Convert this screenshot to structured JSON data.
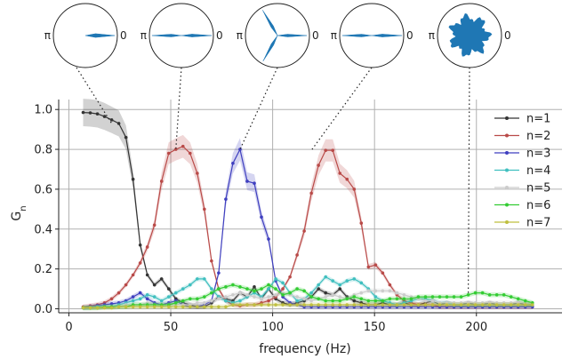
{
  "chart_data": {
    "type": "line",
    "xlabel": "frequency (Hz)",
    "ylabel_main": "G",
    "ylabel_sub": "n",
    "xlim": [
      -5,
      242
    ],
    "ylim": [
      -0.02,
      1.05
    ],
    "xticks": [
      0,
      50,
      100,
      150,
      200
    ],
    "yticks": [
      0.0,
      0.2,
      0.4,
      0.6,
      0.8,
      1.0
    ],
    "xtick_labels": [
      "0",
      "50",
      "100",
      "150",
      "200"
    ],
    "ytick_labels": [
      "0.0",
      "0.2",
      "0.4",
      "0.6",
      "0.8",
      "1.0"
    ],
    "grid": true,
    "legend_position": "top-right",
    "x": [
      7,
      10.5,
      14,
      17.5,
      21,
      24.5,
      28,
      31.5,
      35,
      38.5,
      42,
      45.5,
      49,
      52.5,
      56,
      59.5,
      63,
      66.5,
      70,
      73.5,
      77,
      80.5,
      84,
      87.5,
      91,
      94.5,
      98,
      101.5,
      105,
      108.5,
      112,
      115.5,
      119,
      122.5,
      126,
      129.5,
      133,
      136.5,
      140,
      143.5,
      147,
      150.5,
      154,
      157.5,
      161,
      164.5,
      168,
      171.5,
      175,
      178.5,
      182,
      185.5,
      189,
      192.5,
      196,
      199.5,
      203,
      206.5,
      210,
      213.5,
      217,
      220.5,
      224,
      227.5
    ],
    "series": [
      {
        "name": "n=1",
        "color": "#333333",
        "values": [
          0.985,
          0.983,
          0.978,
          0.965,
          0.948,
          0.93,
          0.86,
          0.65,
          0.32,
          0.17,
          0.12,
          0.15,
          0.1,
          0.05,
          0.03,
          0.02,
          0.01,
          0.01,
          0.03,
          0.06,
          0.05,
          0.04,
          0.08,
          0.06,
          0.11,
          0.05,
          0.1,
          0.05,
          0.03,
          0.02,
          0.03,
          0.04,
          0.06,
          0.1,
          0.08,
          0.07,
          0.1,
          0.06,
          0.04,
          0.03,
          0.02,
          0.02,
          0.03,
          0.02,
          0.02,
          0.03,
          0.02,
          0.02,
          0.03,
          0.04,
          0.02,
          0.03,
          0.02,
          0.02,
          0.03,
          0.02,
          0.02,
          0.03,
          0.02,
          0.02,
          0.02,
          0.03,
          0.02,
          0.02
        ]
      },
      {
        "name": "n=2",
        "color": "#b94a48",
        "values": [
          0.01,
          0.015,
          0.02,
          0.03,
          0.05,
          0.08,
          0.12,
          0.17,
          0.23,
          0.31,
          0.42,
          0.64,
          0.78,
          0.8,
          0.815,
          0.78,
          0.68,
          0.5,
          0.24,
          0.1,
          0.04,
          0.02,
          0.015,
          0.02,
          0.02,
          0.03,
          0.04,
          0.06,
          0.1,
          0.16,
          0.27,
          0.39,
          0.58,
          0.72,
          0.795,
          0.795,
          0.68,
          0.65,
          0.6,
          0.43,
          0.21,
          0.22,
          0.18,
          0.12,
          0.07,
          0.04,
          0.03,
          0.02,
          0.02,
          0.02,
          0.01,
          0.01,
          0.01,
          0.01,
          0.01,
          0.01,
          0.01,
          0.01,
          0.01,
          0.01,
          0.01,
          0.01,
          0.01,
          0.01
        ]
      },
      {
        "name": "n=3",
        "color": "#3f3fbf",
        "values": [
          0.005,
          0.01,
          0.015,
          0.02,
          0.025,
          0.03,
          0.04,
          0.06,
          0.08,
          0.05,
          0.03,
          0.02,
          0.03,
          0.04,
          0.02,
          0.01,
          0.01,
          0.02,
          0.04,
          0.18,
          0.55,
          0.73,
          0.8,
          0.64,
          0.63,
          0.46,
          0.35,
          0.14,
          0.06,
          0.03,
          0.02,
          0.01,
          0.01,
          0.01,
          0.01,
          0.01,
          0.01,
          0.01,
          0.01,
          0.01,
          0.01,
          0.01,
          0.01,
          0.01,
          0.01,
          0.01,
          0.01,
          0.01,
          0.01,
          0.01,
          0.01,
          0.01,
          0.01,
          0.01,
          0.01,
          0.01,
          0.01,
          0.01,
          0.01,
          0.01,
          0.01,
          0.01,
          0.01,
          0.01
        ]
      },
      {
        "name": "n=4",
        "color": "#3fbfbf",
        "values": [
          0.005,
          0.005,
          0.01,
          0.01,
          0.01,
          0.02,
          0.03,
          0.04,
          0.05,
          0.07,
          0.06,
          0.04,
          0.06,
          0.08,
          0.1,
          0.12,
          0.15,
          0.15,
          0.1,
          0.06,
          0.04,
          0.03,
          0.04,
          0.06,
          0.08,
          0.06,
          0.1,
          0.15,
          0.13,
          0.08,
          0.04,
          0.05,
          0.08,
          0.12,
          0.16,
          0.14,
          0.12,
          0.14,
          0.15,
          0.13,
          0.1,
          0.06,
          0.04,
          0.03,
          0.02,
          0.03,
          0.04,
          0.05,
          0.05,
          0.04,
          0.03,
          0.03,
          0.02,
          0.02,
          0.02,
          0.02,
          0.02,
          0.02,
          0.02,
          0.02,
          0.02,
          0.02,
          0.02,
          0.02
        ]
      },
      {
        "name": "n=5",
        "color": "#cccccc",
        "values": [
          0.005,
          0.005,
          0.005,
          0.01,
          0.01,
          0.01,
          0.02,
          0.02,
          0.02,
          0.03,
          0.02,
          0.02,
          0.02,
          0.02,
          0.02,
          0.02,
          0.03,
          0.03,
          0.04,
          0.05,
          0.06,
          0.07,
          0.08,
          0.07,
          0.06,
          0.05,
          0.06,
          0.07,
          0.08,
          0.07,
          0.06,
          0.05,
          0.04,
          0.05,
          0.06,
          0.07,
          0.06,
          0.05,
          0.07,
          0.08,
          0.09,
          0.09,
          0.09,
          0.09,
          0.08,
          0.07,
          0.06,
          0.05,
          0.04,
          0.04,
          0.03,
          0.03,
          0.03,
          0.03,
          0.03,
          0.03,
          0.03,
          0.03,
          0.03,
          0.03,
          0.03,
          0.03,
          0.03,
          0.03
        ]
      },
      {
        "name": "n=6",
        "color": "#33cc33",
        "values": [
          0.005,
          0.005,
          0.005,
          0.01,
          0.01,
          0.01,
          0.01,
          0.02,
          0.02,
          0.02,
          0.02,
          0.02,
          0.02,
          0.03,
          0.04,
          0.05,
          0.05,
          0.06,
          0.08,
          0.1,
          0.11,
          0.12,
          0.11,
          0.1,
          0.09,
          0.1,
          0.12,
          0.1,
          0.07,
          0.08,
          0.1,
          0.09,
          0.06,
          0.05,
          0.04,
          0.04,
          0.04,
          0.05,
          0.06,
          0.05,
          0.04,
          0.04,
          0.04,
          0.05,
          0.05,
          0.05,
          0.05,
          0.06,
          0.06,
          0.06,
          0.06,
          0.06,
          0.06,
          0.06,
          0.07,
          0.08,
          0.08,
          0.07,
          0.07,
          0.07,
          0.06,
          0.05,
          0.04,
          0.03
        ]
      },
      {
        "name": "n=7",
        "color": "#bfbf3f",
        "values": [
          0.005,
          0.005,
          0.005,
          0.005,
          0.005,
          0.01,
          0.01,
          0.01,
          0.01,
          0.01,
          0.01,
          0.01,
          0.01,
          0.01,
          0.01,
          0.01,
          0.01,
          0.01,
          0.01,
          0.01,
          0.01,
          0.02,
          0.02,
          0.02,
          0.02,
          0.02,
          0.02,
          0.02,
          0.02,
          0.02,
          0.02,
          0.02,
          0.02,
          0.02,
          0.02,
          0.02,
          0.02,
          0.02,
          0.02,
          0.02,
          0.02,
          0.02,
          0.02,
          0.02,
          0.02,
          0.02,
          0.02,
          0.02,
          0.02,
          0.02,
          0.02,
          0.02,
          0.02,
          0.02,
          0.02,
          0.02,
          0.02,
          0.02,
          0.02,
          0.02,
          0.02,
          0.02,
          0.02,
          0.02
        ]
      }
    ],
    "polar_insets": [
      {
        "label_left": "π",
        "label_right": "0",
        "points_to": {
          "x": 21,
          "y": 0.93
        },
        "lobe_count": 1
      },
      {
        "label_left": "π",
        "label_right": "0",
        "points_to": {
          "x": 52.5,
          "y": 0.8
        },
        "lobe_count": 2
      },
      {
        "label_left": "π",
        "label_right": "0",
        "points_to": {
          "x": 84,
          "y": 0.8
        },
        "lobe_count": 3
      },
      {
        "label_left": "π",
        "label_right": "0",
        "points_to": {
          "x": 119,
          "y": 0.795
        },
        "lobe_count": 2
      },
      {
        "label_left": "π",
        "label_right": "0",
        "points_to": {
          "x": 196,
          "y": 0.08
        },
        "lobe_count": 7
      }
    ]
  }
}
